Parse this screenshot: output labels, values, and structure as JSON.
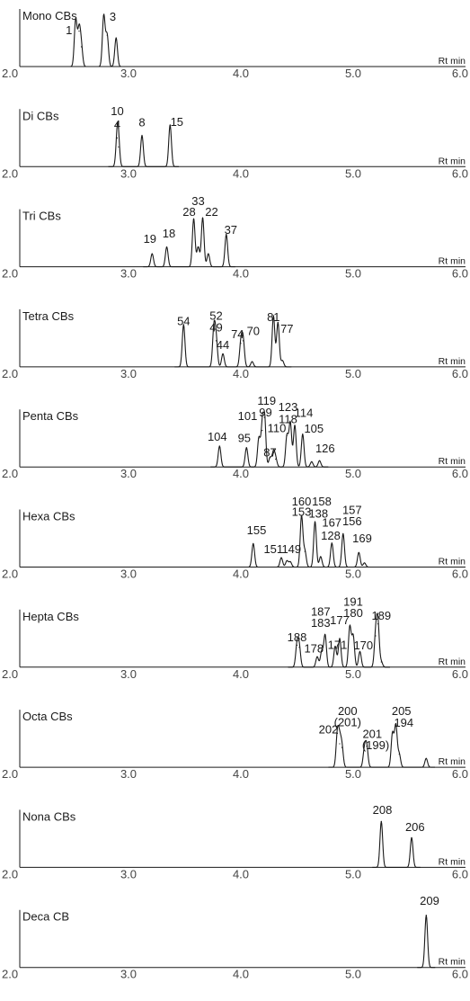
{
  "chart_data": [
    {
      "type": "line",
      "title": "Mono CBs",
      "xlabel": "Rt min",
      "xlim": [
        2.0,
        6.0
      ],
      "x_ticks": [
        "2.0",
        "3.0",
        "4.0",
        "5.0",
        "6.0"
      ],
      "peaks": [
        {
          "rt": 2.53,
          "h": 0.9
        },
        {
          "rt": 2.56,
          "h": 0.68
        },
        {
          "rt": 2.58,
          "h": 0.38
        },
        {
          "rt": 2.78,
          "h": 0.98
        },
        {
          "rt": 2.81,
          "h": 0.6
        },
        {
          "rt": 2.89,
          "h": 0.55
        }
      ],
      "labels": [
        {
          "text": "1",
          "rt": 2.47,
          "h": 0.62
        },
        {
          "text": "3",
          "rt": 2.86,
          "h": 0.88
        }
      ]
    },
    {
      "type": "line",
      "title": "Di CBs",
      "xlabel": "Rt min",
      "xlim": [
        2.0,
        6.0
      ],
      "x_ticks": [
        "2.0",
        "3.0",
        "4.0",
        "5.0",
        "6.0"
      ],
      "peaks": [
        {
          "rt": 2.9,
          "h": 0.55
        },
        {
          "rt": 2.91,
          "h": 0.38
        },
        {
          "rt": 3.12,
          "h": 0.6
        },
        {
          "rt": 3.37,
          "h": 0.8
        }
      ],
      "labels": [
        {
          "text": "10",
          "rt": 2.9,
          "h": 0.99
        },
        {
          "text": "4",
          "rt": 2.9,
          "h": 0.73
        },
        {
          "text": "8",
          "rt": 3.12,
          "h": 0.77
        },
        {
          "text": "15",
          "rt": 3.43,
          "h": 0.78
        }
      ]
    },
    {
      "type": "line",
      "title": "Tri CBs",
      "xlabel": "Rt min",
      "xlim": [
        2.0,
        6.0
      ],
      "x_ticks": [
        "2.0",
        "3.0",
        "4.0",
        "5.0",
        "6.0"
      ],
      "peaks": [
        {
          "rt": 3.21,
          "h": 0.25
        },
        {
          "rt": 3.34,
          "h": 0.38
        },
        {
          "rt": 3.58,
          "h": 0.92
        },
        {
          "rt": 3.62,
          "h": 0.38
        },
        {
          "rt": 3.66,
          "h": 0.94
        },
        {
          "rt": 3.71,
          "h": 0.25
        },
        {
          "rt": 3.87,
          "h": 0.62
        }
      ],
      "labels": [
        {
          "text": "19",
          "rt": 3.19,
          "h": 0.46
        },
        {
          "text": "18",
          "rt": 3.36,
          "h": 0.56
        },
        {
          "text": "28",
          "rt": 3.54,
          "h": 0.98
        },
        {
          "text": "33",
          "rt": 3.62,
          "h": 1.18
        },
        {
          "text": "22",
          "rt": 3.74,
          "h": 0.98
        },
        {
          "text": "37",
          "rt": 3.91,
          "h": 0.63
        }
      ]
    },
    {
      "type": "line",
      "title": "Tetra CBs",
      "xlabel": "Rt min",
      "xlim": [
        2.0,
        6.0
      ],
      "x_ticks": [
        "2.0",
        "3.0",
        "4.0",
        "5.0",
        "6.0"
      ],
      "peaks": [
        {
          "rt": 3.49,
          "h": 0.81
        },
        {
          "rt": 3.76,
          "h": 0.73
        },
        {
          "rt": 3.78,
          "h": 0.5
        },
        {
          "rt": 3.84,
          "h": 0.25
        },
        {
          "rt": 4.0,
          "h": 0.45
        },
        {
          "rt": 4.02,
          "h": 0.5
        },
        {
          "rt": 4.1,
          "h": 0.1
        },
        {
          "rt": 4.29,
          "h": 0.98
        },
        {
          "rt": 4.33,
          "h": 0.85
        },
        {
          "rt": 4.37,
          "h": 0.12
        }
      ],
      "labels": [
        {
          "text": "54",
          "rt": 3.49,
          "h": 0.8
        },
        {
          "text": "52",
          "rt": 3.78,
          "h": 0.9
        },
        {
          "text": "49",
          "rt": 3.78,
          "h": 0.68
        },
        {
          "text": "44",
          "rt": 3.84,
          "h": 0.34
        },
        {
          "text": "74",
          "rt": 3.97,
          "h": 0.55
        },
        {
          "text": "70",
          "rt": 4.11,
          "h": 0.61
        },
        {
          "text": "81",
          "rt": 4.29,
          "h": 0.88
        },
        {
          "text": "77",
          "rt": 4.41,
          "h": 0.65
        }
      ]
    },
    {
      "type": "line",
      "title": "Penta CBs",
      "xlabel": "Rt min",
      "xlim": [
        2.0,
        6.0
      ],
      "x_ticks": [
        "2.0",
        "3.0",
        "4.0",
        "5.0",
        "6.0"
      ],
      "peaks": [
        {
          "rt": 3.81,
          "h": 0.4
        },
        {
          "rt": 4.05,
          "h": 0.37
        },
        {
          "rt": 4.16,
          "h": 0.55
        },
        {
          "rt": 4.19,
          "h": 0.7
        },
        {
          "rt": 4.21,
          "h": 0.95
        },
        {
          "rt": 4.26,
          "h": 0.18
        },
        {
          "rt": 4.29,
          "h": 0.28
        },
        {
          "rt": 4.31,
          "h": 0.15
        },
        {
          "rt": 4.41,
          "h": 0.6
        },
        {
          "rt": 4.44,
          "h": 0.85
        },
        {
          "rt": 4.48,
          "h": 0.8
        },
        {
          "rt": 4.55,
          "h": 0.63
        },
        {
          "rt": 4.63,
          "h": 0.1
        },
        {
          "rt": 4.7,
          "h": 0.12
        }
      ],
      "labels": [
        {
          "text": "104",
          "rt": 3.79,
          "h": 0.5
        },
        {
          "text": "95",
          "rt": 4.03,
          "h": 0.48
        },
        {
          "text": "101",
          "rt": 4.06,
          "h": 0.9
        },
        {
          "text": "119",
          "rt": 4.23,
          "h": 1.19
        },
        {
          "text": "99",
          "rt": 4.22,
          "h": 0.97
        },
        {
          "text": "110",
          "rt": 4.32,
          "h": 0.67
        },
        {
          "text": "87",
          "rt": 4.26,
          "h": 0.2
        },
        {
          "text": "123",
          "rt": 4.42,
          "h": 1.07
        },
        {
          "text": "118",
          "rt": 4.42,
          "h": 0.84
        },
        {
          "text": "114",
          "rt": 4.56,
          "h": 0.96
        },
        {
          "text": "105",
          "rt": 4.65,
          "h": 0.66
        },
        {
          "text": "126",
          "rt": 4.75,
          "h": 0.28
        }
      ]
    },
    {
      "type": "line",
      "title": "Hexa CBs",
      "xlabel": "Rt min",
      "xlim": [
        2.0,
        6.0
      ],
      "x_ticks": [
        "2.0",
        "3.0",
        "4.0",
        "5.0",
        "6.0"
      ],
      "peaks": [
        {
          "rt": 4.11,
          "h": 0.45
        },
        {
          "rt": 4.36,
          "h": 0.18
        },
        {
          "rt": 4.41,
          "h": 0.12
        },
        {
          "rt": 4.44,
          "h": 0.1
        },
        {
          "rt": 4.54,
          "h": 0.98
        },
        {
          "rt": 4.57,
          "h": 0.3
        },
        {
          "rt": 4.66,
          "h": 0.87
        },
        {
          "rt": 4.71,
          "h": 0.2
        },
        {
          "rt": 4.81,
          "h": 0.46
        },
        {
          "rt": 4.91,
          "h": 0.64
        },
        {
          "rt": 5.05,
          "h": 0.28
        },
        {
          "rt": 5.1,
          "h": 0.08
        }
      ],
      "labels": [
        {
          "text": "155",
          "rt": 4.14,
          "h": 0.63
        },
        {
          "text": "151",
          "rt": 4.29,
          "h": 0.27
        },
        {
          "text": "149",
          "rt": 4.45,
          "h": 0.27
        },
        {
          "text": "160",
          "rt": 4.54,
          "h": 1.18
        },
        {
          "text": "153",
          "rt": 4.54,
          "h": 0.98
        },
        {
          "text": "158",
          "rt": 4.72,
          "h": 1.18
        },
        {
          "text": "138",
          "rt": 4.69,
          "h": 0.95
        },
        {
          "text": "167",
          "rt": 4.81,
          "h": 0.78
        },
        {
          "text": "128",
          "rt": 4.8,
          "h": 0.53
        },
        {
          "text": "157",
          "rt": 4.99,
          "h": 1.02
        },
        {
          "text": "156",
          "rt": 4.99,
          "h": 0.8
        },
        {
          "text": "169",
          "rt": 5.08,
          "h": 0.47
        }
      ]
    },
    {
      "type": "line",
      "title": "Hepta CBs",
      "xlabel": "Rt min",
      "xlim": [
        2.0,
        6.0
      ],
      "x_ticks": [
        "2.0",
        "3.0",
        "4.0",
        "5.0",
        "6.0"
      ],
      "peaks": [
        {
          "rt": 4.5,
          "h": 0.42
        },
        {
          "rt": 4.52,
          "h": 0.38
        },
        {
          "rt": 4.68,
          "h": 0.2
        },
        {
          "rt": 4.72,
          "h": 0.3
        },
        {
          "rt": 4.75,
          "h": 0.62
        },
        {
          "rt": 4.84,
          "h": 0.4
        },
        {
          "rt": 4.88,
          "h": 0.55
        },
        {
          "rt": 4.97,
          "h": 0.78
        },
        {
          "rt": 5.0,
          "h": 0.6
        },
        {
          "rt": 5.06,
          "h": 0.3
        },
        {
          "rt": 5.2,
          "h": 0.6
        },
        {
          "rt": 5.22,
          "h": 0.83
        },
        {
          "rt": 5.25,
          "h": 0.1
        }
      ],
      "labels": [
        {
          "text": "188",
          "rt": 4.5,
          "h": 0.5
        },
        {
          "text": "178",
          "rt": 4.65,
          "h": 0.28
        },
        {
          "text": "187",
          "rt": 4.71,
          "h": 0.99
        },
        {
          "text": "183",
          "rt": 4.71,
          "h": 0.77
        },
        {
          "text": "171",
          "rt": 4.86,
          "h": 0.35
        },
        {
          "text": "177",
          "rt": 4.88,
          "h": 0.82
        },
        {
          "text": "191",
          "rt": 5.0,
          "h": 1.18
        },
        {
          "text": "180",
          "rt": 5.0,
          "h": 0.96
        },
        {
          "text": "170",
          "rt": 5.09,
          "h": 0.34
        },
        {
          "text": "189",
          "rt": 5.25,
          "h": 0.91
        }
      ]
    },
    {
      "type": "line",
      "title": "Octa CBs",
      "xlabel": "Rt min",
      "xlim": [
        2.0,
        6.0
      ],
      "x_ticks": [
        "2.0",
        "3.0",
        "4.0",
        "5.0",
        "6.0"
      ],
      "peaks": [
        {
          "rt": 4.86,
          "h": 0.65
        },
        {
          "rt": 4.88,
          "h": 0.45
        },
        {
          "rt": 4.9,
          "h": 0.38
        },
        {
          "rt": 5.1,
          "h": 0.32
        },
        {
          "rt": 5.12,
          "h": 0.4
        },
        {
          "rt": 5.35,
          "h": 0.65
        },
        {
          "rt": 5.38,
          "h": 0.8
        },
        {
          "rt": 5.41,
          "h": 0.25
        },
        {
          "rt": 5.65,
          "h": 0.17
        }
      ],
      "labels": [
        {
          "text": "202",
          "rt": 4.78,
          "h": 0.65
        },
        {
          "text": "200",
          "rt": 4.95,
          "h": 1.0
        },
        {
          "text": "(201)",
          "rt": 4.95,
          "h": 0.79
        },
        {
          "text": "201",
          "rt": 5.17,
          "h": 0.56
        },
        {
          "text": "(199)",
          "rt": 5.2,
          "h": 0.35
        },
        {
          "text": "205",
          "rt": 5.43,
          "h": 1.0
        },
        {
          "text": "194",
          "rt": 5.45,
          "h": 0.78
        }
      ]
    },
    {
      "type": "line",
      "title": "Nona CBs",
      "xlabel": "Rt min",
      "xlim": [
        2.0,
        6.0
      ],
      "x_ticks": [
        "2.0",
        "3.0",
        "4.0",
        "5.0",
        "6.0"
      ],
      "peaks": [
        {
          "rt": 5.25,
          "h": 0.88
        },
        {
          "rt": 5.52,
          "h": 0.57
        }
      ],
      "labels": [
        {
          "text": "208",
          "rt": 5.26,
          "h": 1.02
        },
        {
          "text": "206",
          "rt": 5.55,
          "h": 0.7
        }
      ]
    },
    {
      "type": "line",
      "title": "Deca CB",
      "xlabel": "Rt min",
      "xlim": [
        2.0,
        6.0
      ],
      "x_ticks": [
        "2.0",
        "3.0",
        "4.0",
        "5.0",
        "6.0"
      ],
      "peaks": [
        {
          "rt": 5.65,
          "h": 1.0
        }
      ],
      "labels": [
        {
          "text": "209",
          "rt": 5.68,
          "h": 1.2
        }
      ]
    }
  ]
}
